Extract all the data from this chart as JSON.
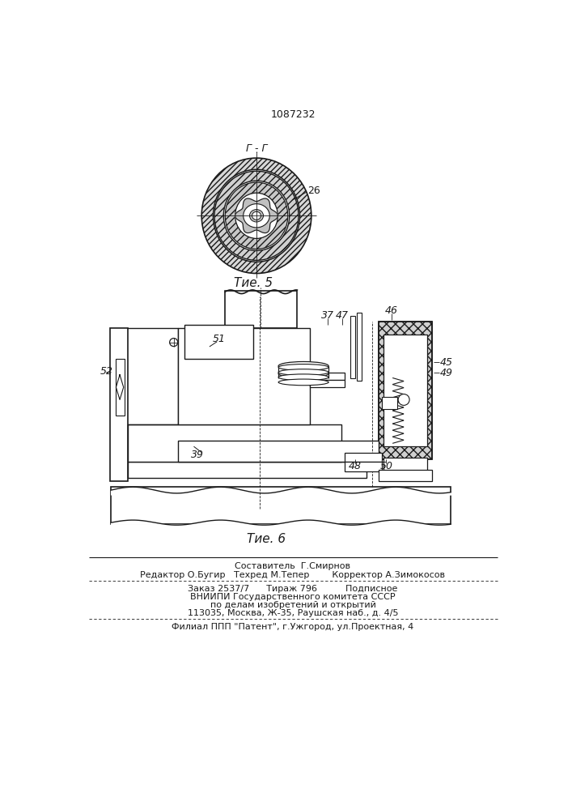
{
  "patent_number": "1087232",
  "bg_color": "#ffffff",
  "line_color": "#1a1a1a",
  "fig5_label": "Τие. 5",
  "fig6_label": "Τие. 6",
  "section_label": "Г - Г",
  "label_26": "26",
  "label_51": "51",
  "label_52": "52",
  "label_39": "39",
  "label_37": "37",
  "label_47": "47",
  "label_46": "46",
  "label_45": "45",
  "label_49": "49",
  "label_48": "48",
  "label_50": "50",
  "footer_line1": "Составитель  Г.Смирнов",
  "footer_line2": "Редактор О.Бугир   Техред М.Тепер        Корректор А.Зимокосов",
  "footer_line3": "Заказ 2537/7      Тираж 796          Подписное",
  "footer_line4": "ВНИИПИ Государственного комитета СССР",
  "footer_line5": "по делам изобретений и открытий",
  "footer_line6": "113035, Москва, Ж-35, Раушская наб., д. 4/5",
  "footer_line7": "Филиал ППП \"Патент\", г.Ужгород, ул.Проектная, 4"
}
